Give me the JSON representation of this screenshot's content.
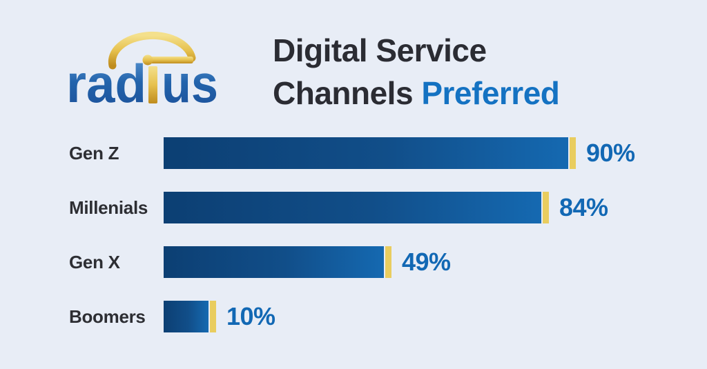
{
  "background_color": "#e8edf6",
  "logo": {
    "name": "radius",
    "part1": "rad",
    "part2": "us",
    "blue_color": "#1c55a0",
    "gold_color": "#dcAf33"
  },
  "title": {
    "line1": "Digital Service",
    "line2_dark": "Channels",
    "line2_accent": "Preferred",
    "dark_color": "#2b2c33",
    "accent_color": "#1472c2"
  },
  "chart_data": {
    "type": "bar",
    "orientation": "horizontal",
    "title": "Digital Service Channels Preferred",
    "categories": [
      "Gen Z",
      "Millenials",
      "Gen X",
      "Boomers"
    ],
    "values": [
      90,
      84,
      49,
      10
    ],
    "value_labels": [
      "90%",
      "84%",
      "49%",
      "10%"
    ],
    "xlim": [
      0,
      100
    ],
    "grid": false,
    "legend": false,
    "bar_gradient": [
      "#0c3f73",
      "#1569b1"
    ],
    "bar_cap_color": "#e9cd5f",
    "value_label_color": "#1268b4",
    "category_label_color": "#2d2e33"
  }
}
